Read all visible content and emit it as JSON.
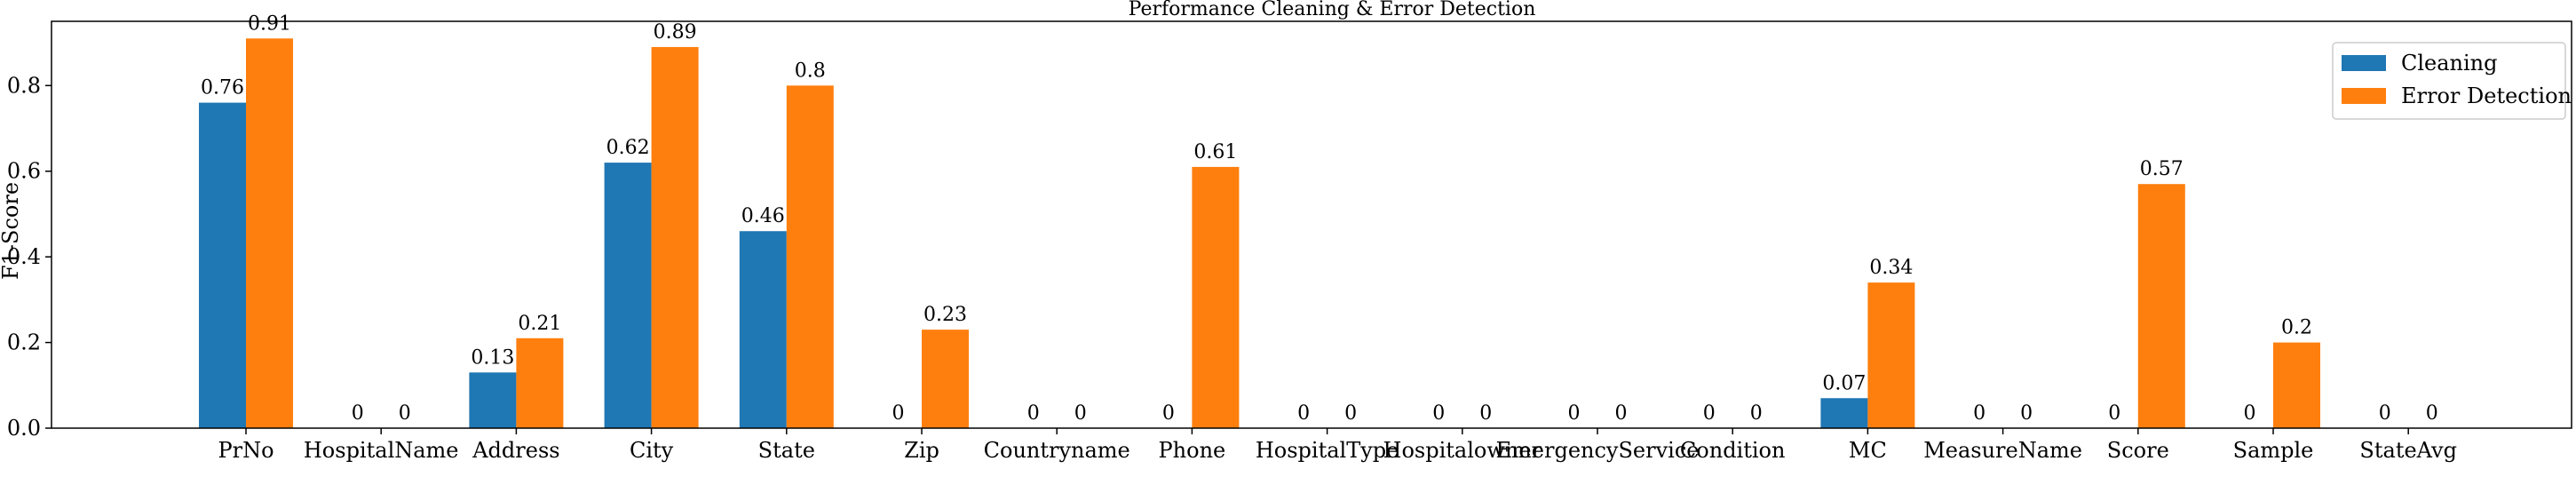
{
  "chart_data": {
    "type": "bar",
    "title": "Performance Cleaning & Error Detection",
    "xlabel": "",
    "ylabel": "F1-Score",
    "ylim": [
      0,
      0.95
    ],
    "yticks": [
      "0.0",
      "0.2",
      "0.4",
      "0.6",
      "0.8"
    ],
    "categories": [
      "PrNo",
      "HospitalName",
      "Address",
      "City",
      "State",
      "Zip",
      "Countryname",
      "Phone",
      "HospitalType",
      "Hospitalowner",
      "EmergencyService",
      "Condition",
      "MC",
      "MeasureName",
      "Score",
      "Sample",
      "StateAvg"
    ],
    "series": [
      {
        "name": "Cleaning",
        "color": "#1f77b4",
        "values": [
          0.76,
          0,
          0.13,
          0.62,
          0.46,
          0,
          0,
          0,
          0,
          0,
          0,
          0,
          0.07,
          0,
          0,
          0,
          0
        ],
        "labels": [
          "0.76",
          "0",
          "0.13",
          "0.62",
          "0.46",
          "0",
          "0",
          "0",
          "0",
          "0",
          "0",
          "0",
          "0.07",
          "0",
          "0",
          "0",
          "0"
        ]
      },
      {
        "name": "Error Detection",
        "color": "#ff7f0e",
        "values": [
          0.91,
          0,
          0.21,
          0.89,
          0.8,
          0.23,
          0,
          0.61,
          0,
          0,
          0,
          0,
          0.34,
          0,
          0.57,
          0.2,
          0
        ],
        "labels": [
          "0.91",
          "0",
          "0.21",
          "0.89",
          "0.8",
          "0.23",
          "0",
          "0.61",
          "0",
          "0",
          "0",
          "0",
          "0.34",
          "0",
          "0.57",
          "0.2",
          "0"
        ]
      }
    ],
    "legend": "top-right",
    "grid": false
  }
}
